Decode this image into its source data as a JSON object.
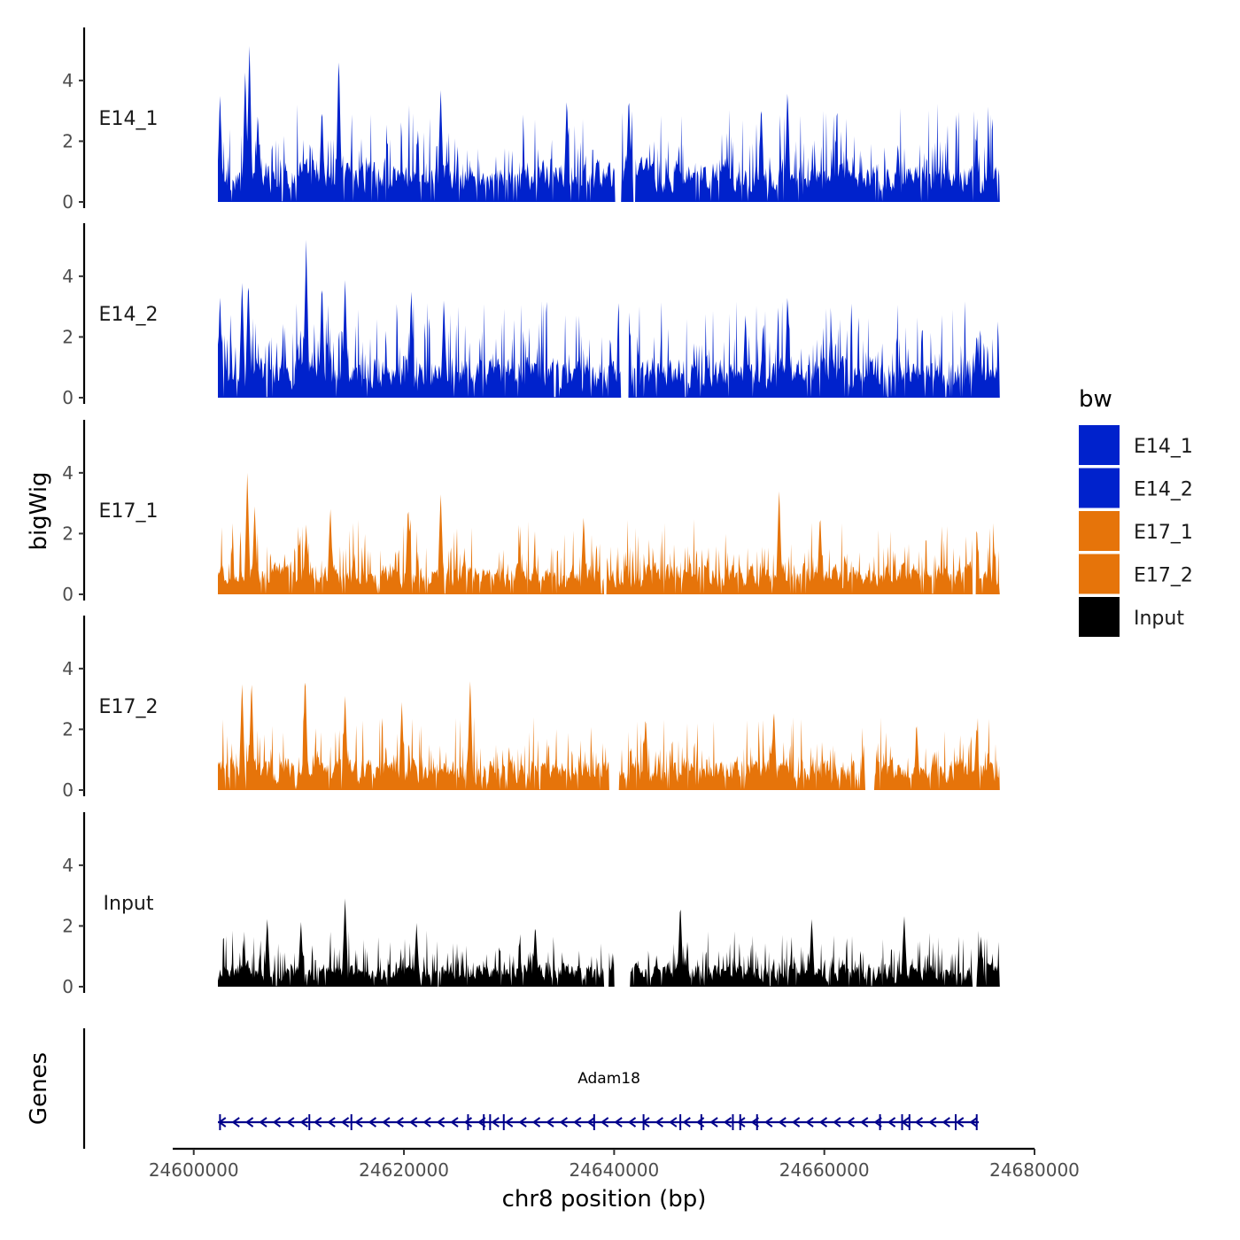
{
  "chart_data": {
    "type": "area",
    "title": "",
    "ylabel": "bigWig",
    "genes_label": "Genes",
    "xlabel": "chr8 position (bp)",
    "xlim": [
      24598000,
      24680000
    ],
    "x_data_range": [
      24602300,
      24676700
    ],
    "x_ticks": [
      24600000,
      24620000,
      24640000,
      24660000,
      24680000
    ],
    "x_tick_labels": [
      "24600000",
      "24620000",
      "24640000",
      "24660000",
      "24680000"
    ],
    "ylim": [
      0,
      5.6
    ],
    "y_ticks": [
      0,
      2,
      4
    ],
    "y_tick_labels": [
      "0",
      "2",
      "4"
    ],
    "legend": {
      "title": "bw",
      "entries": [
        {
          "label": "E14_1",
          "color": "#0022CC"
        },
        {
          "label": "E14_2",
          "color": "#0022CC"
        },
        {
          "label": "E17_1",
          "color": "#E6740A"
        },
        {
          "label": "E17_2",
          "color": "#E6740A"
        },
        {
          "label": "Input",
          "color": "#000000"
        }
      ]
    },
    "series": [
      {
        "name": "E14_1",
        "color": "#0022CC",
        "max": 5.3,
        "peaks": [
          [
            24602500,
            3.6
          ],
          [
            24604900,
            4.4
          ],
          [
            24605300,
            5.3
          ],
          [
            24606100,
            3.0
          ],
          [
            24612200,
            3.2
          ],
          [
            24613800,
            4.9
          ],
          [
            24623500,
            3.8
          ],
          [
            24635500,
            3.5
          ],
          [
            24641400,
            3.6
          ],
          [
            24654000,
            3.3
          ],
          [
            24656500,
            3.8
          ],
          [
            24667000,
            2.0
          ],
          [
            24674500,
            2.2
          ]
        ],
        "gaps": [
          [
            24640100,
            24640700
          ],
          [
            24641800,
            24642000
          ]
        ]
      },
      {
        "name": "E14_2",
        "color": "#0022CC",
        "max": 5.2,
        "peaks": [
          [
            24602500,
            3.4
          ],
          [
            24604600,
            3.9
          ],
          [
            24605200,
            4.0
          ],
          [
            24610700,
            5.2
          ],
          [
            24612200,
            3.9
          ],
          [
            24614400,
            4.0
          ],
          [
            24620700,
            3.6
          ],
          [
            24623800,
            3.3
          ],
          [
            24641400,
            3.1
          ],
          [
            24652500,
            2.8
          ],
          [
            24656500,
            3.5
          ],
          [
            24674500,
            2.2
          ]
        ],
        "gaps": [
          [
            24640600,
            24641400
          ]
        ]
      },
      {
        "name": "E17_1",
        "color": "#E6740A",
        "max": 4.0,
        "peaks": [
          [
            24605100,
            4.0
          ],
          [
            24605800,
            2.9
          ],
          [
            24610700,
            2.3
          ],
          [
            24613000,
            2.9
          ],
          [
            24620400,
            3.0
          ],
          [
            24623500,
            3.4
          ],
          [
            24637100,
            2.6
          ],
          [
            24655700,
            3.5
          ],
          [
            24659600,
            2.7
          ],
          [
            24674500,
            2.3
          ]
        ],
        "gaps": [
          [
            24639000,
            24639300
          ],
          [
            24674100,
            24674400
          ]
        ]
      },
      {
        "name": "E17_2",
        "color": "#E6740A",
        "max": 3.9,
        "peaks": [
          [
            24604600,
            3.6
          ],
          [
            24605500,
            3.7
          ],
          [
            24610600,
            3.9
          ],
          [
            24614400,
            3.2
          ],
          [
            24619800,
            2.9
          ],
          [
            24626300,
            3.7
          ],
          [
            24643000,
            2.5
          ],
          [
            24655200,
            2.7
          ],
          [
            24668800,
            2.1
          ],
          [
            24674500,
            2.2
          ]
        ],
        "gaps": [
          [
            24639500,
            24640500
          ],
          [
            24663900,
            24664800
          ]
        ]
      },
      {
        "name": "Input",
        "color": "#000000",
        "max": 3.0,
        "peaks": [
          [
            24607000,
            2.3
          ],
          [
            24610200,
            2.2
          ],
          [
            24614400,
            3.0
          ],
          [
            24621200,
            2.1
          ],
          [
            24632500,
            2.1
          ],
          [
            24646300,
            2.8
          ],
          [
            24658800,
            2.3
          ],
          [
            24667600,
            2.4
          ],
          [
            24674900,
            1.7
          ]
        ],
        "gaps": [
          [
            24623200,
            24623300
          ],
          [
            24639000,
            24639500
          ],
          [
            24640000,
            24641500
          ],
          [
            24662300,
            24662400
          ],
          [
            24674100,
            24674500
          ]
        ]
      }
    ],
    "genes": [
      {
        "name": "Adam18",
        "strand": "-",
        "start": 24602300,
        "end": 24674700,
        "color": "#00008B",
        "exons": [
          24602500,
          24611000,
          24615000,
          24626100,
          24627600,
          24628200,
          24629500,
          24638100,
          24642800,
          24646300,
          24648300,
          24651300,
          24652000,
          24653600,
          24665300,
          24667400,
          24668100,
          24672500,
          24674500
        ]
      }
    ]
  }
}
